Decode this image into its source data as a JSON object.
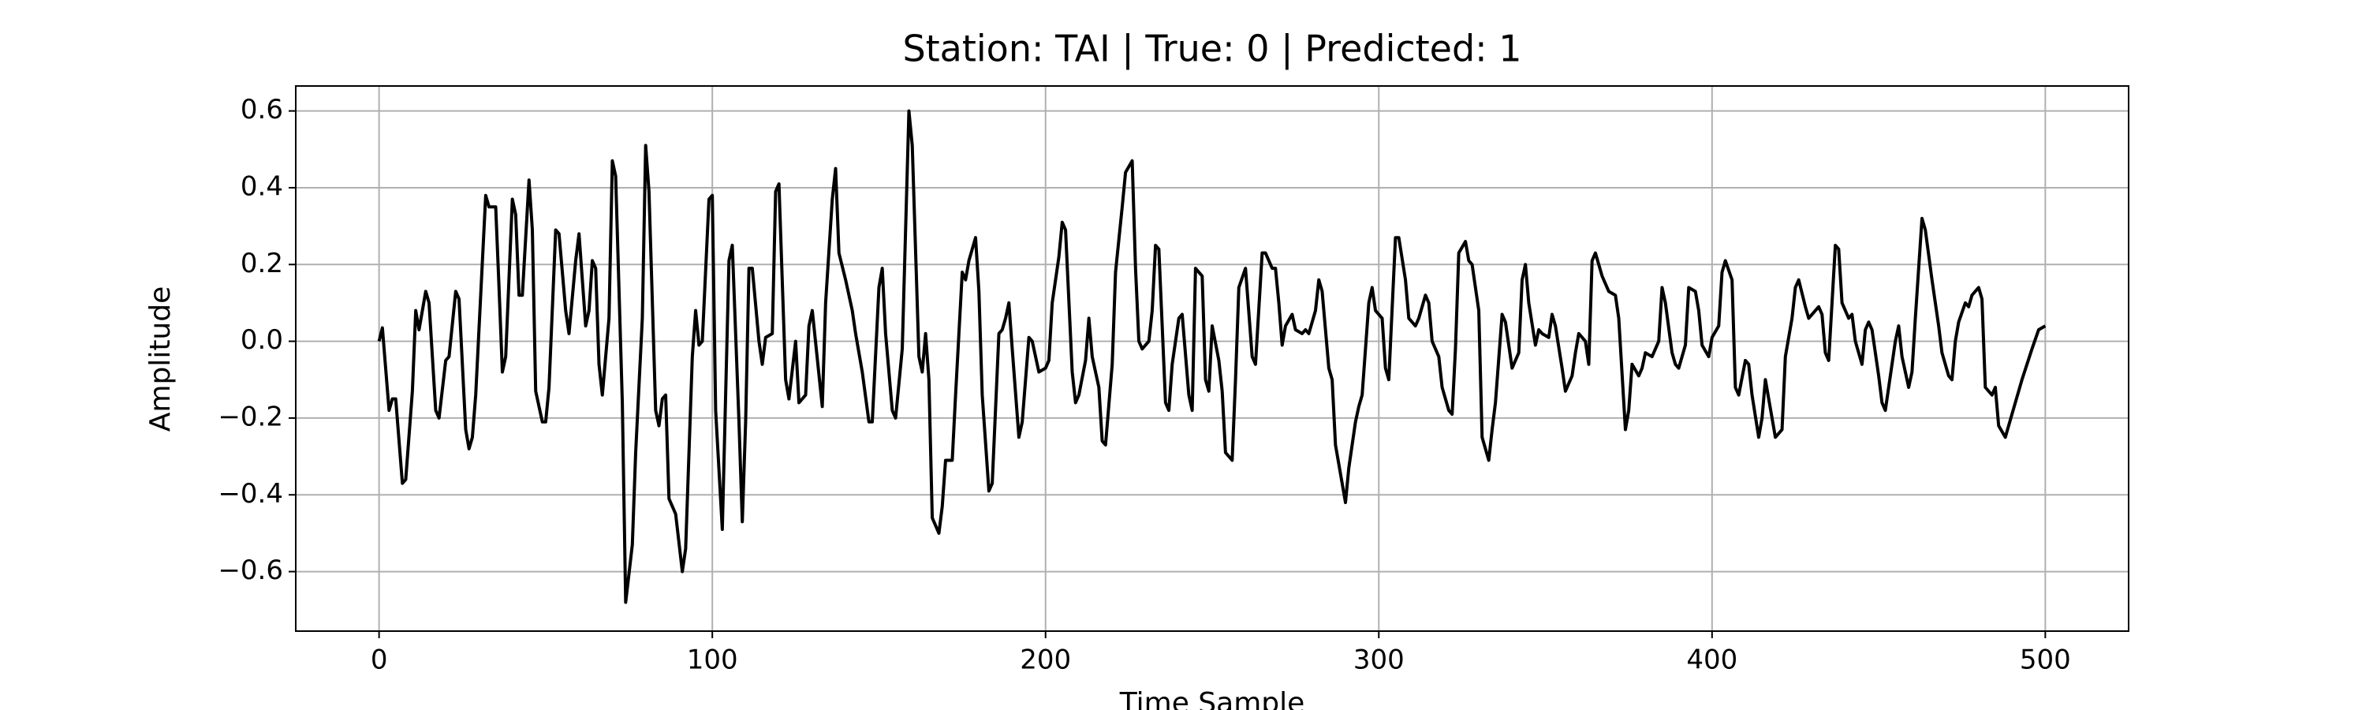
{
  "chart_data": {
    "type": "line",
    "title": "Station: TAI | True: 0 | Predicted: 1",
    "x_label": "Time Sample",
    "y_label": "Amplitude",
    "xlim": [
      -25,
      525
    ],
    "ylim": [
      -0.755,
      0.665
    ],
    "xticks": [
      0,
      100,
      200,
      300,
      400,
      500
    ],
    "yticks": [
      {
        "value": -0.6,
        "label": "−0.6"
      },
      {
        "value": -0.4,
        "label": "−0.4"
      },
      {
        "value": -0.2,
        "label": "−0.2"
      },
      {
        "value": 0,
        "label": "0.0"
      },
      {
        "value": 0.2,
        "label": "0.2"
      },
      {
        "value": 0.4,
        "label": "0.4"
      },
      {
        "value": 0.6,
        "label": "0.6"
      }
    ],
    "grid": true,
    "series": [
      {
        "color": "#000000",
        "x": [
          0,
          1,
          3,
          4,
          5,
          7,
          8,
          10,
          11,
          12,
          14,
          15,
          17,
          18,
          20,
          21,
          23,
          24,
          26,
          27,
          28,
          29,
          32,
          33,
          35,
          36,
          37,
          38,
          40,
          41,
          42,
          43,
          45,
          46,
          47,
          49,
          50,
          51,
          53,
          54,
          56,
          57,
          59,
          60,
          62,
          63,
          64,
          65,
          66,
          67,
          69,
          70,
          71,
          73,
          74,
          76,
          77,
          79,
          80,
          81,
          83,
          84,
          85,
          86,
          87,
          88,
          89,
          91,
          92,
          94,
          95,
          96,
          97,
          99,
          100,
          101,
          103,
          104,
          105,
          106,
          108,
          109,
          110,
          111,
          112,
          114,
          115,
          116,
          118,
          119,
          120,
          122,
          123,
          125,
          126,
          128,
          129,
          130,
          133,
          134,
          136,
          137,
          138,
          140,
          142,
          143,
          145,
          147,
          148,
          150,
          151,
          152,
          154,
          155,
          157,
          159,
          160,
          162,
          163,
          164,
          165,
          166,
          168,
          169,
          170,
          172,
          173,
          175,
          176,
          177,
          179,
          180,
          181,
          183,
          184,
          186,
          187,
          188,
          189,
          190,
          192,
          193,
          195,
          196,
          198,
          200,
          201,
          202,
          204,
          205,
          206,
          208,
          209,
          210,
          212,
          213,
          214,
          216,
          217,
          218,
          220,
          221,
          223,
          224,
          226,
          227,
          228,
          229,
          231,
          232,
          233,
          234,
          236,
          237,
          238,
          240,
          241,
          243,
          244,
          245,
          247,
          248,
          249,
          250,
          252,
          253,
          254,
          256,
          257,
          258,
          260,
          262,
          263,
          265,
          266,
          268,
          269,
          270,
          271,
          272,
          274,
          275,
          277,
          278,
          279,
          281,
          282,
          283,
          285,
          286,
          287,
          289,
          290,
          291,
          293,
          294,
          295,
          297,
          298,
          299,
          301,
          302,
          303,
          305,
          306,
          308,
          309,
          311,
          312,
          314,
          315,
          316,
          318,
          319,
          321,
          322,
          323,
          324,
          326,
          327,
          328,
          330,
          331,
          333,
          334,
          335,
          337,
          338,
          340,
          342,
          343,
          344,
          345,
          347,
          348,
          349,
          351,
          352,
          353,
          355,
          356,
          358,
          359,
          360,
          362,
          363,
          364,
          365,
          367,
          369,
          371,
          372,
          374,
          375,
          376,
          378,
          379,
          380,
          382,
          384,
          385,
          386,
          388,
          389,
          390,
          392,
          393,
          395,
          396,
          397,
          399,
          400,
          402,
          403,
          404,
          406,
          407,
          408,
          410,
          411,
          412,
          414,
          415,
          416,
          418,
          419,
          421,
          422,
          424,
          425,
          426,
          428,
          429,
          430,
          432,
          433,
          434,
          435,
          437,
          438,
          439,
          441,
          442,
          443,
          445,
          446,
          447,
          448,
          450,
          451,
          452,
          453,
          455,
          456,
          457,
          459,
          460,
          461,
          463,
          464,
          466,
          467,
          468,
          469,
          471,
          472,
          473,
          474,
          476,
          477,
          478,
          480,
          481,
          482,
          484,
          485,
          486,
          488,
          490,
          493,
          496,
          498,
          500
        ],
        "values": [
          0.0,
          0.035,
          -0.18,
          -0.15,
          -0.15,
          -0.37,
          -0.36,
          -0.13,
          0.08,
          0.03,
          0.13,
          0.1,
          -0.18,
          -0.2,
          -0.05,
          -0.04,
          0.13,
          0.11,
          -0.23,
          -0.28,
          -0.25,
          -0.14,
          0.38,
          0.35,
          0.35,
          0.14,
          -0.08,
          -0.04,
          0.37,
          0.33,
          0.12,
          0.12,
          0.42,
          0.29,
          -0.13,
          -0.21,
          -0.21,
          -0.12,
          0.29,
          0.28,
          0.08,
          0.02,
          0.21,
          0.28,
          0.04,
          0.08,
          0.21,
          0.19,
          -0.06,
          -0.14,
          0.06,
          0.47,
          0.43,
          -0.16,
          -0.68,
          -0.53,
          -0.29,
          0.06,
          0.51,
          0.39,
          -0.18,
          -0.22,
          -0.15,
          -0.14,
          -0.41,
          -0.43,
          -0.45,
          -0.6,
          -0.54,
          -0.04,
          0.08,
          -0.01,
          0.0,
          0.37,
          0.38,
          -0.18,
          -0.49,
          -0.14,
          0.21,
          0.25,
          -0.21,
          -0.47,
          -0.21,
          0.19,
          0.19,
          0.0,
          -0.06,
          0.01,
          0.02,
          0.39,
          0.41,
          -0.1,
          -0.15,
          0.0,
          -0.16,
          -0.14,
          0.04,
          0.08,
          -0.17,
          0.1,
          0.37,
          0.45,
          0.23,
          0.16,
          0.08,
          0.02,
          -0.08,
          -0.21,
          -0.21,
          0.14,
          0.19,
          0.02,
          -0.18,
          -0.2,
          -0.02,
          0.6,
          0.51,
          -0.04,
          -0.08,
          0.02,
          -0.1,
          -0.46,
          -0.5,
          -0.43,
          -0.31,
          -0.31,
          -0.14,
          0.18,
          0.16,
          0.21,
          0.27,
          0.13,
          -0.14,
          -0.39,
          -0.37,
          0.02,
          0.03,
          0.06,
          0.1,
          -0.02,
          -0.25,
          -0.21,
          0.01,
          0.0,
          -0.08,
          -0.07,
          -0.05,
          0.1,
          0.22,
          0.31,
          0.29,
          -0.08,
          -0.16,
          -0.14,
          -0.05,
          0.06,
          -0.04,
          -0.12,
          -0.26,
          -0.27,
          -0.06,
          0.18,
          0.35,
          0.44,
          0.47,
          0.19,
          0.0,
          -0.02,
          0.0,
          0.08,
          0.25,
          0.24,
          -0.16,
          -0.18,
          -0.06,
          0.06,
          0.07,
          -0.14,
          -0.18,
          0.19,
          0.17,
          -0.1,
          -0.13,
          0.04,
          -0.05,
          -0.13,
          -0.29,
          -0.31,
          -0.1,
          0.14,
          0.19,
          -0.04,
          -0.06,
          0.23,
          0.23,
          0.19,
          0.19,
          0.1,
          -0.01,
          0.04,
          0.07,
          0.03,
          0.02,
          0.03,
          0.02,
          0.08,
          0.16,
          0.13,
          -0.07,
          -0.1,
          -0.27,
          -0.37,
          -0.42,
          -0.33,
          -0.21,
          -0.17,
          -0.14,
          0.1,
          0.14,
          0.08,
          0.06,
          -0.07,
          -0.1,
          0.27,
          0.27,
          0.16,
          0.06,
          0.04,
          0.06,
          0.12,
          0.1,
          0.0,
          -0.04,
          -0.12,
          -0.18,
          -0.19,
          -0.02,
          0.23,
          0.26,
          0.21,
          0.2,
          0.08,
          -0.25,
          -0.31,
          -0.23,
          -0.16,
          0.07,
          0.05,
          -0.07,
          -0.03,
          0.16,
          0.2,
          0.1,
          -0.01,
          0.03,
          0.02,
          0.01,
          0.07,
          0.04,
          -0.07,
          -0.13,
          -0.09,
          -0.03,
          0.02,
          0.0,
          -0.06,
          0.21,
          0.23,
          0.17,
          0.13,
          0.12,
          0.06,
          -0.23,
          -0.18,
          -0.06,
          -0.09,
          -0.07,
          -0.03,
          -0.04,
          0.0,
          0.14,
          0.1,
          -0.03,
          -0.06,
          -0.07,
          -0.01,
          0.14,
          0.13,
          0.08,
          -0.01,
          -0.04,
          0.01,
          0.04,
          0.18,
          0.21,
          0.16,
          -0.12,
          -0.14,
          -0.05,
          -0.06,
          -0.14,
          -0.25,
          -0.2,
          -0.1,
          -0.2,
          -0.25,
          -0.23,
          -0.04,
          0.06,
          0.14,
          0.16,
          0.09,
          0.06,
          0.07,
          0.09,
          0.07,
          -0.03,
          -0.05,
          0.25,
          0.24,
          0.1,
          0.06,
          0.07,
          0.0,
          -0.06,
          0.03,
          0.05,
          0.03,
          -0.09,
          -0.16,
          -0.18,
          -0.12,
          0.0,
          0.04,
          -0.04,
          -0.12,
          -0.08,
          0.06,
          0.32,
          0.29,
          0.16,
          0.1,
          0.04,
          -0.03,
          -0.09,
          -0.1,
          0.0,
          0.05,
          0.1,
          0.09,
          0.12,
          0.14,
          0.11,
          -0.12,
          -0.14,
          -0.12,
          -0.22,
          -0.25,
          -0.19,
          -0.1,
          -0.02,
          0.03,
          0.04
        ]
      }
    ]
  }
}
